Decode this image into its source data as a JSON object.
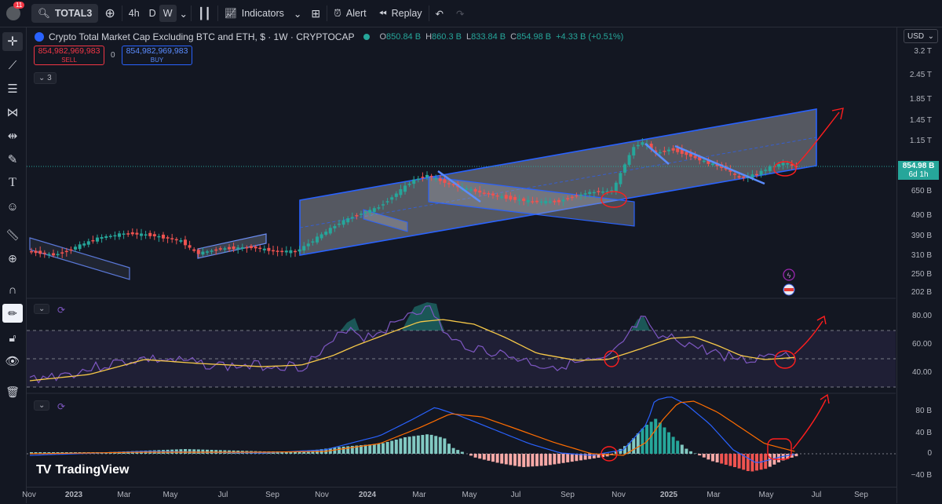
{
  "toolbar": {
    "notif_count": "11",
    "symbol": "TOTAL3",
    "intervals": [
      "4h",
      "D",
      "W"
    ],
    "indicators": "Indicators",
    "alert": "Alert",
    "replay": "Replay"
  },
  "legend": {
    "title": "Crypto Total Market Cap Excluding BTC and ETH, $ · 1W · CRYPTOCAP",
    "open_label": "O",
    "open": "850.84 B",
    "high_label": "H",
    "high": "860.3 B",
    "low_label": "L",
    "low": "833.84 B",
    "close_label": "C",
    "close": "854.98 B",
    "change": "+4.33 B (+0.51%)",
    "sell_price": "854,982,969,983",
    "sell_label": "SELL",
    "spread": "0",
    "buy_price": "854,982,969,983",
    "buy_label": "BUY",
    "layers": "3"
  },
  "price_axis": {
    "currency": "USD",
    "ticks": [
      "3.2 T",
      "2.45 T",
      "1.85 T",
      "1.45 T",
      "1.15 T",
      "650 B",
      "490 B",
      "390 B",
      "310 B",
      "250 B",
      "202 B"
    ],
    "last_price": "854.98 B",
    "countdown": "6d 1h"
  },
  "rsi_axis": {
    "ticks": [
      "80.00",
      "60.00",
      "40.00"
    ]
  },
  "macd_axis": {
    "ticks": [
      "80 B",
      "40 B",
      "0",
      "−40 B"
    ]
  },
  "time_axis": [
    "Nov",
    "2023",
    "Mar",
    "May",
    "Jul",
    "Sep",
    "Nov",
    "2024",
    "Mar",
    "May",
    "Jul",
    "Sep",
    "Nov",
    "2025",
    "Mar",
    "May",
    "Jul",
    "Sep"
  ],
  "branding": "TradingView",
  "colors": {
    "up": "#26a69a",
    "down": "#ef5350",
    "accent": "#2962ff",
    "bg": "#131722"
  }
}
